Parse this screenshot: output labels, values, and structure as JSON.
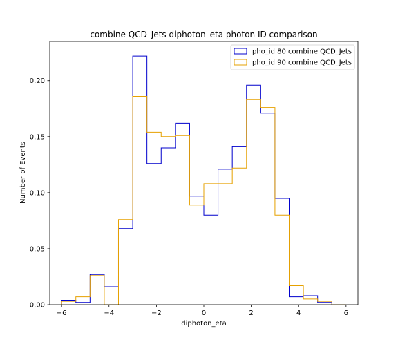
{
  "chart_data": {
    "type": "histogram",
    "title": "combine QCD_Jets diphoton_eta photon ID comparison",
    "xlabel": "diphoton_eta",
    "ylabel": "Number of Events",
    "xlim": [
      -6.5,
      6.5
    ],
    "ylim": [
      0,
      0.235
    ],
    "xticks": [
      -6,
      -4,
      -2,
      0,
      2,
      4,
      6
    ],
    "xtick_labels": [
      "−6",
      "−4",
      "−2",
      "0",
      "2",
      "4",
      "6"
    ],
    "yticks": [
      0.0,
      0.05,
      0.1,
      0.15,
      0.2
    ],
    "ytick_labels": [
      "0.00",
      "0.05",
      "0.10",
      "0.15",
      "0.20"
    ],
    "grid": false,
    "legend_position": "top-right",
    "bin_edges": [
      -6.0,
      -5.4,
      -4.8,
      -4.2,
      -3.6,
      -3.0,
      -2.4,
      -1.8,
      -1.2,
      -0.6,
      0.0,
      0.6,
      1.2,
      1.8,
      2.4,
      3.0,
      3.6,
      4.2,
      4.8,
      5.4,
      6.0
    ],
    "series": [
      {
        "name": "pho_id 80 combine QCD_Jets",
        "color": "#0000cc",
        "values": [
          0.004,
          0.002,
          0.027,
          0.016,
          0.068,
          0.222,
          0.126,
          0.14,
          0.162,
          0.097,
          0.08,
          0.121,
          0.141,
          0.196,
          0.171,
          0.095,
          0.007,
          0.008,
          0.002,
          0.0
        ]
      },
      {
        "name": "pho_id 90 combine QCD_Jets",
        "color": "#e6a100",
        "values": [
          0.003,
          0.007,
          0.026,
          0.0,
          0.076,
          0.186,
          0.154,
          0.15,
          0.151,
          0.089,
          0.108,
          0.108,
          0.122,
          0.183,
          0.176,
          0.08,
          0.017,
          0.005,
          0.003,
          0.0
        ]
      }
    ]
  }
}
